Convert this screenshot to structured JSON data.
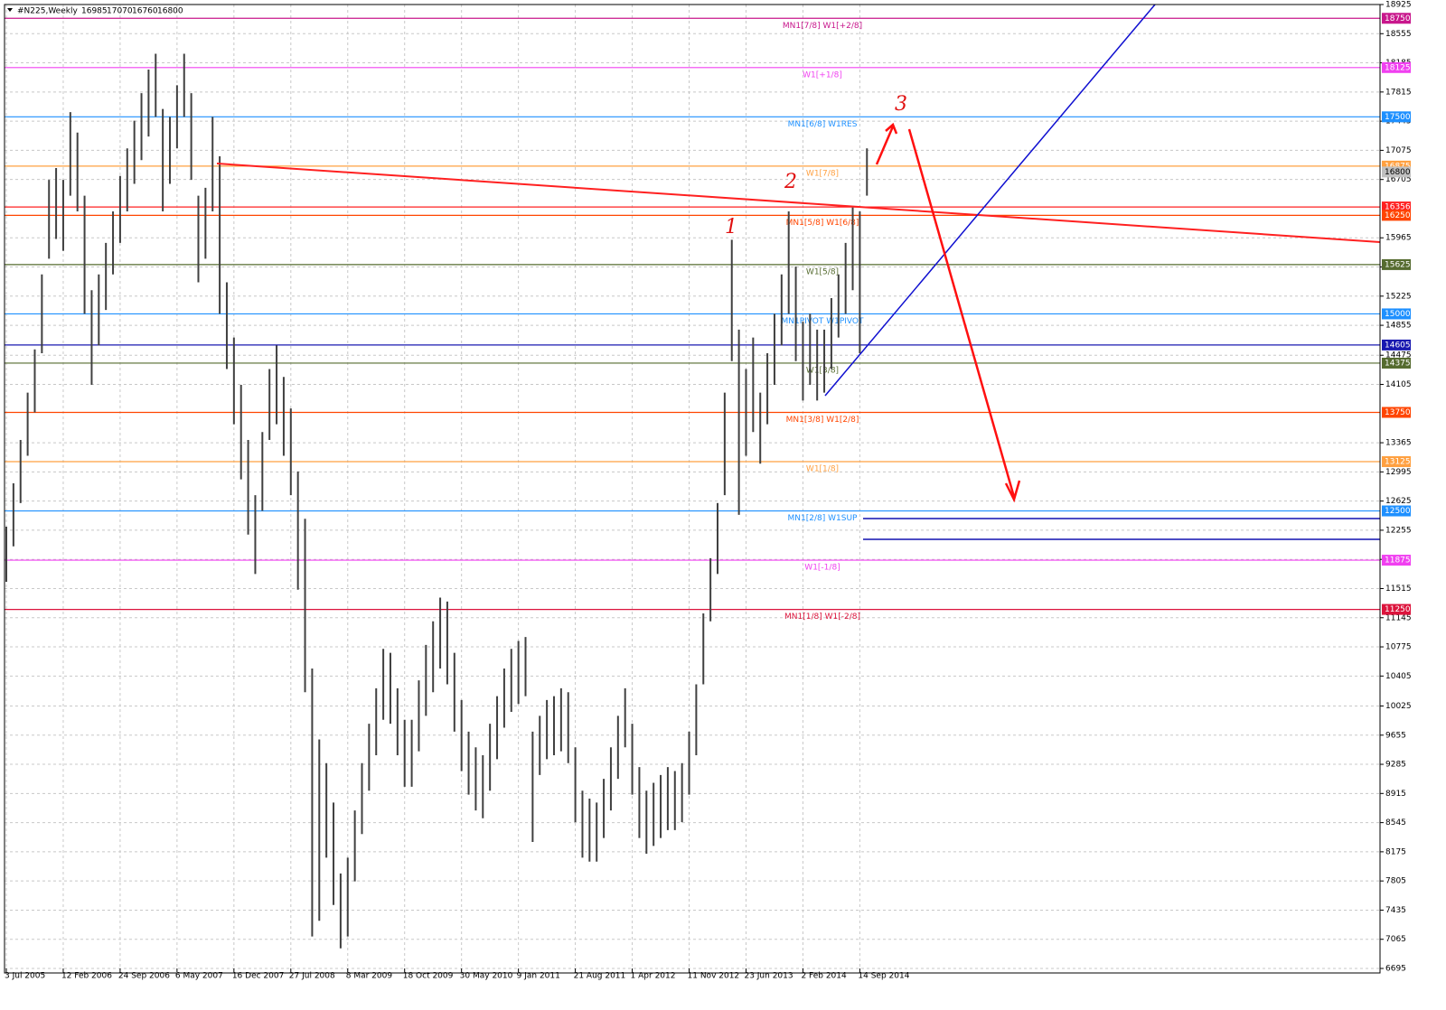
{
  "chart_data": {
    "type": "ohlc",
    "symbol": "#N225,Weekly",
    "ohlc": [
      16985,
      17070,
      16760,
      16800
    ],
    "categories": [
      "3 Jul 2005",
      null,
      null,
      null,
      null,
      null,
      null,
      null,
      "12 Feb 2006",
      null,
      null,
      null,
      null,
      null,
      null,
      null,
      "24 Sep 2006",
      null,
      null,
      null,
      null,
      null,
      null,
      null,
      "6 May 2007",
      null,
      null,
      null,
      null,
      null,
      null,
      null,
      "16 Dec 2007",
      null,
      null,
      null,
      null,
      null,
      null,
      null,
      "27 Jul 2008",
      null,
      null,
      null,
      null,
      null,
      null,
      null,
      "8 Mar 2009",
      null,
      null,
      null,
      null,
      null,
      null,
      null,
      "18 Oct 2009",
      null,
      null,
      null,
      null,
      null,
      null,
      null,
      "30 May 2010",
      null,
      null,
      null,
      null,
      null,
      null,
      null,
      "9 Jan 2011",
      null,
      null,
      null,
      null,
      null,
      null,
      null,
      "21 Aug 2011",
      null,
      null,
      null,
      null,
      null,
      null,
      null,
      "1 Apr 2012",
      null,
      null,
      null,
      null,
      null,
      null,
      null,
      "11 Nov 2012",
      null,
      null,
      null,
      null,
      null,
      null,
      null,
      "23 Jun 2013",
      null,
      null,
      null,
      null,
      null,
      null,
      null,
      "2 Feb 2014",
      null,
      null,
      null,
      null,
      null,
      null,
      null,
      "14 Sep 2014",
      null
    ],
    "high": [
      12300,
      12850,
      13400,
      14000,
      14550,
      15500,
      16700,
      16850,
      16700,
      17560,
      17300,
      16500,
      15300,
      15500,
      15900,
      16300,
      16750,
      17100,
      17450,
      17800,
      18100,
      18300,
      17600,
      17500,
      17900,
      18300,
      17800,
      16500,
      16600,
      17500,
      17000,
      15400,
      14700,
      14100,
      13400,
      12700,
      13500,
      14300,
      14600,
      14200,
      13800,
      13000,
      12400,
      10500,
      9600,
      9300,
      8800,
      7900,
      8100,
      8700,
      9300,
      9800,
      10250,
      10750,
      10700,
      10250,
      9850,
      9850,
      10350,
      10800,
      11100,
      11400,
      11350,
      10700,
      10100,
      9700,
      9500,
      9400,
      9800,
      10150,
      10500,
      10750,
      10850,
      10900,
      9700,
      9900,
      10100,
      10150,
      10250,
      10200,
      9500,
      8950,
      8850,
      8800,
      9100,
      9500,
      9900,
      10250,
      9800,
      9250,
      8950,
      9050,
      9150,
      9250,
      9200,
      9300,
      9700,
      10300,
      11200,
      11900,
      12600,
      14000,
      15940,
      14800,
      14300,
      14700,
      14000,
      14500,
      15000,
      15500,
      16300,
      15600,
      14900,
      15000,
      14800,
      14800,
      15200,
      15500,
      15900,
      16350,
      16300,
      17100
    ],
    "low": [
      11600,
      12050,
      12600,
      13200,
      13750,
      14500,
      15700,
      15950,
      15800,
      16500,
      16300,
      15000,
      14100,
      14600,
      15050,
      15500,
      15900,
      16300,
      16650,
      16950,
      17250,
      17500,
      16300,
      16650,
      17100,
      17500,
      16700,
      15400,
      15700,
      16300,
      15000,
      14300,
      13600,
      12900,
      12200,
      11700,
      12500,
      13400,
      13600,
      13200,
      12700,
      11500,
      10200,
      7100,
      7300,
      8100,
      7500,
      6950,
      7100,
      7800,
      8400,
      8950,
      9400,
      9850,
      9800,
      9400,
      9000,
      9000,
      9450,
      9900,
      10200,
      10500,
      10300,
      9700,
      9200,
      8900,
      8700,
      8600,
      8950,
      9350,
      9750,
      9950,
      10050,
      10150,
      8300,
      9150,
      9350,
      9400,
      9450,
      9300,
      8550,
      8100,
      8050,
      8050,
      8350,
      8700,
      9100,
      9500,
      8900,
      8350,
      8150,
      8250,
      8350,
      8450,
      8450,
      8550,
      8900,
      9400,
      10300,
      11100,
      11700,
      12700,
      14400,
      12450,
      13200,
      13500,
      13100,
      13600,
      14100,
      14600,
      15000,
      14400,
      13900,
      14100,
      13900,
      14000,
      14300,
      14700,
      15000,
      15300,
      14500,
      16500
    ],
    "ylim": [
      6695,
      18925
    ],
    "yticks": [
      18925,
      18555,
      18185,
      17815,
      17445,
      17075,
      16705,
      15965,
      15595,
      15225,
      14855,
      14475,
      14105,
      13365,
      12995,
      12625,
      12255,
      11885,
      11515,
      11145,
      10775,
      10405,
      10025,
      9655,
      9285,
      8915,
      8545,
      8175,
      7805,
      7435,
      7065,
      6695
    ],
    "grid": true,
    "color": "#404040",
    "levels": [
      {
        "value": 18750,
        "label": "MN1[7/8] W1[+2/8]",
        "color": "#c8178c"
      },
      {
        "value": 18125,
        "label": "W1[+1/8]",
        "color": "#f040f0"
      },
      {
        "value": 17500,
        "label": "MN1[6/8] W1RES",
        "color": "#1e90ff"
      },
      {
        "value": 16875,
        "label": "W1[7/8]",
        "color": "#ffa040"
      },
      {
        "value": 16356,
        "color": "#ff2020"
      },
      {
        "value": 16250,
        "label": "MN1[5/8] W1[6/8]",
        "color": "#ff4500"
      },
      {
        "value": 15625,
        "label": "W1[5/8]",
        "color": "#556b2f"
      },
      {
        "value": 15000,
        "label": "MN1PIVOT W1PIVOT",
        "color": "#1e90ff"
      },
      {
        "value": 14605,
        "color": "#1818b0"
      },
      {
        "value": 14375,
        "label": "W1[3/8]",
        "color": "#556b2f"
      },
      {
        "value": 13750,
        "label": "MN1[3/8] W1[2/8]",
        "color": "#ff4500"
      },
      {
        "value": 13125,
        "label": "W1[1/8]",
        "color": "#ffa040"
      },
      {
        "value": 12500,
        "label": "MN1[2/8] W1SUP",
        "color": "#1e90ff"
      },
      {
        "value": 11875,
        "label": "W1[-1/8]",
        "color": "#f040f0"
      },
      {
        "value": 11250,
        "label": "MN1[1/8] W1[-2/8]",
        "color": "#dc143c"
      }
    ],
    "annotations": [
      "1",
      "2",
      "3"
    ]
  }
}
